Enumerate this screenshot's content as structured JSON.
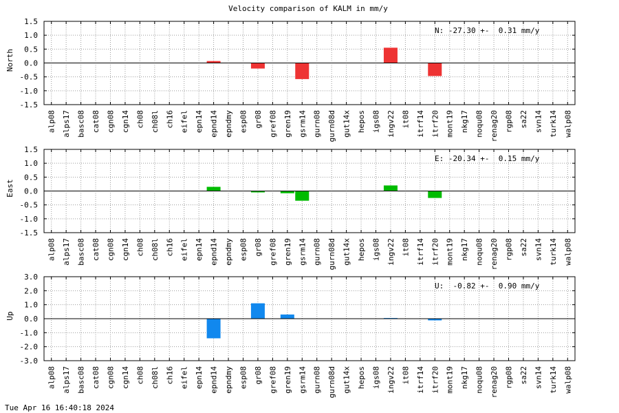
{
  "title": "Velocity comparison of KALM in mm/y",
  "timestamp": "Tue Apr 16 16:40:18 2024",
  "chart_data": [
    {
      "type": "bar",
      "title": "Velocity comparison of KALM in mm/y",
      "ylabel": "North",
      "annotation": "N: -27.30 +-  0.31 mm/y",
      "color": "#ee3333",
      "ylim": [
        -1.5,
        1.5
      ],
      "yticks": [
        "1.5",
        "1.0",
        "0.5",
        "0.0",
        "-0.5",
        "-1.0",
        "-1.5"
      ],
      "categories": [
        "alp08",
        "alps17",
        "basc08",
        "cat08",
        "cgn08",
        "cgn14",
        "ch08",
        "ch08l",
        "ch16",
        "eifel",
        "epn14",
        "epnd14",
        "epndmy",
        "esp08",
        "gr08",
        "gref08",
        "gren19",
        "gsrm14",
        "gurn08",
        "gurn08d",
        "gut14x",
        "hepos",
        "igs08",
        "ingv22",
        "it08",
        "itrf14",
        "itrf20",
        "mont19",
        "nkg17",
        "noqu08",
        "renag20",
        "rgp08",
        "sa22",
        "svn14",
        "turk14",
        "walp08"
      ],
      "values": [
        null,
        null,
        null,
        null,
        null,
        null,
        null,
        null,
        null,
        null,
        null,
        0.07,
        null,
        null,
        -0.2,
        null,
        null,
        -0.58,
        null,
        null,
        null,
        null,
        null,
        0.55,
        null,
        null,
        -0.47,
        null,
        null,
        null,
        null,
        null,
        null,
        null,
        null,
        null
      ],
      "grid": true
    },
    {
      "type": "bar",
      "ylabel": "East",
      "annotation": "E: -20.34 +-  0.15 mm/y",
      "color": "#00bb00",
      "ylim": [
        -1.5,
        1.5
      ],
      "yticks": [
        "1.5",
        "1.0",
        "0.5",
        "0.0",
        "-0.5",
        "-1.0",
        "-1.5"
      ],
      "categories": [
        "alp08",
        "alps17",
        "basc08",
        "cat08",
        "cgn08",
        "cgn14",
        "ch08",
        "ch08l",
        "ch16",
        "eifel",
        "epn14",
        "epnd14",
        "epndmy",
        "esp08",
        "gr08",
        "gref08",
        "gren19",
        "gsrm14",
        "gurn08",
        "gurn08d",
        "gut14x",
        "hepos",
        "igs08",
        "ingv22",
        "it08",
        "itrf14",
        "itrf20",
        "mont19",
        "nkg17",
        "noqu08",
        "renag20",
        "rgp08",
        "sa22",
        "svn14",
        "turk14",
        "walp08"
      ],
      "values": [
        null,
        null,
        null,
        null,
        null,
        null,
        null,
        null,
        null,
        null,
        null,
        0.15,
        null,
        null,
        -0.05,
        null,
        -0.08,
        -0.35,
        null,
        null,
        null,
        null,
        null,
        0.2,
        null,
        null,
        -0.25,
        null,
        null,
        null,
        null,
        null,
        null,
        null,
        null,
        null
      ],
      "grid": true
    },
    {
      "type": "bar",
      "ylabel": "Up",
      "annotation": "U:  -0.82 +-  0.90 mm/y",
      "color": "#1188ee",
      "ylim": [
        -3.0,
        3.0
      ],
      "yticks": [
        "3.0",
        "2.0",
        "1.0",
        "0.0",
        "-1.0",
        "-2.0",
        "-3.0"
      ],
      "categories": [
        "alp08",
        "alps17",
        "basc08",
        "cat08",
        "cgn08",
        "cgn14",
        "ch08",
        "ch08l",
        "ch16",
        "eifel",
        "epn14",
        "epnd14",
        "epndmy",
        "esp08",
        "gr08",
        "gref08",
        "gren19",
        "gsrm14",
        "gurn08",
        "gurn08d",
        "gut14x",
        "hepos",
        "igs08",
        "ingv22",
        "it08",
        "itrf14",
        "itrf20",
        "mont19",
        "nkg17",
        "noqu08",
        "renag20",
        "rgp08",
        "sa22",
        "svn14",
        "turk14",
        "walp08"
      ],
      "values": [
        null,
        null,
        null,
        null,
        null,
        null,
        null,
        null,
        null,
        null,
        null,
        -1.4,
        null,
        null,
        1.1,
        null,
        0.3,
        null,
        null,
        null,
        null,
        null,
        null,
        0.05,
        null,
        null,
        -0.12,
        null,
        null,
        null,
        null,
        null,
        null,
        null,
        null,
        null
      ],
      "grid": true
    }
  ]
}
